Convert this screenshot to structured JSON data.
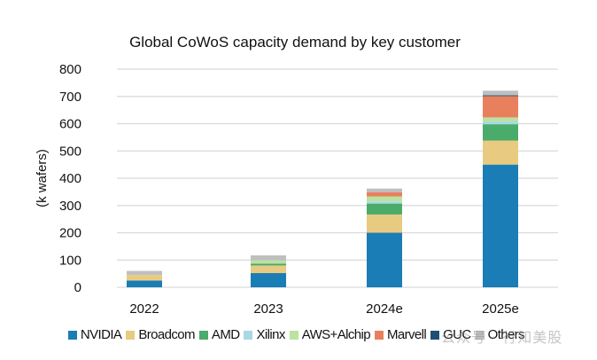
{
  "chart_data": {
    "type": "bar",
    "stacked": true,
    "title": "Global CoWoS capacity demand by key customer",
    "xlabel": "",
    "ylabel": "(k wafers)",
    "ylim": [
      0,
      800
    ],
    "yticks": [
      0,
      100,
      200,
      300,
      400,
      500,
      600,
      700,
      800
    ],
    "grid": true,
    "legend_position": "bottom",
    "categories": [
      "2022",
      "2023",
      "2024e",
      "2025e"
    ],
    "series": [
      {
        "name": "NVIDIA",
        "color": "#1a7db5",
        "values": [
          25,
          52,
          200,
          450
        ]
      },
      {
        "name": "Broadcom",
        "color": "#e8cb80",
        "values": [
          20,
          28,
          67,
          88
        ]
      },
      {
        "name": "AMD",
        "color": "#4aab6a",
        "values": [
          0,
          7,
          40,
          60
        ]
      },
      {
        "name": "Xilinx",
        "color": "#a8d8e6",
        "values": [
          0,
          0,
          8,
          10
        ]
      },
      {
        "name": "AWS+Alchip",
        "color": "#b9e3a0",
        "values": [
          0,
          12,
          18,
          15
        ]
      },
      {
        "name": "Marvell",
        "color": "#e8805e",
        "values": [
          0,
          0,
          15,
          78
        ]
      },
      {
        "name": "GUC",
        "color": "#1c4e78",
        "values": [
          0,
          0,
          0,
          3
        ]
      },
      {
        "name": "Others",
        "color": "#bfbfbf",
        "values": [
          15,
          18,
          14,
          17
        ]
      }
    ]
  },
  "watermark": "公众号 · 行知美股"
}
